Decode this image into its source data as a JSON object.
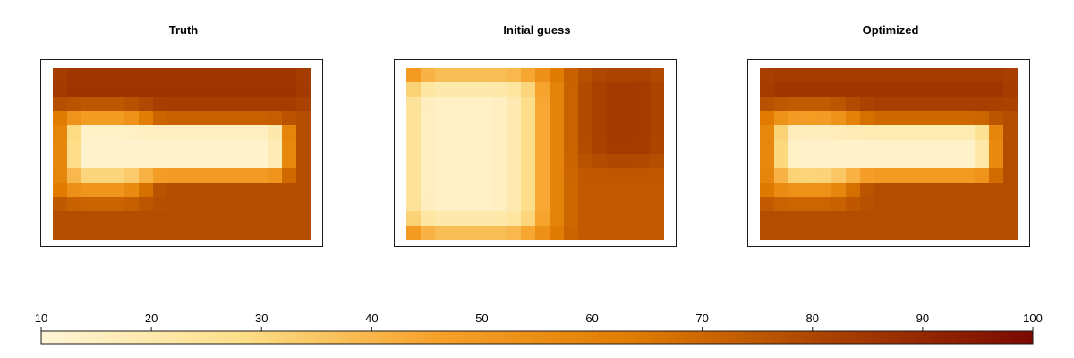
{
  "chart_data": [
    {
      "type": "heatmap",
      "title": "Truth",
      "grid": [
        18,
        12
      ],
      "base": 78,
      "blobs": [
        {
          "x0": 0.08,
          "x1": 0.9,
          "y0": 0.33,
          "y1": 0.62,
          "v": 12,
          "soft": 0.06
        },
        {
          "x0": 0.02,
          "x1": 0.35,
          "y0": 0.25,
          "y1": 0.75,
          "v": 45,
          "soft": 0.1
        },
        {
          "x0": 0.0,
          "x1": 1.0,
          "y0": 0.0,
          "y1": 0.22,
          "v": 86,
          "soft": 0.08
        }
      ]
    },
    {
      "type": "heatmap",
      "title": "Initial guess",
      "grid": [
        18,
        12
      ],
      "base": 74,
      "blobs": [
        {
          "x0": 0.0,
          "x1": 0.45,
          "y0": 0.1,
          "y1": 0.9,
          "v": 14,
          "soft": 0.12
        },
        {
          "x0": 0.0,
          "x1": 0.55,
          "y0": 0.0,
          "y1": 1.0,
          "v": 30,
          "soft": 0.14
        },
        {
          "x0": 0.7,
          "x1": 1.0,
          "y0": 0.0,
          "y1": 0.55,
          "v": 84,
          "soft": 0.12
        }
      ]
    },
    {
      "type": "heatmap",
      "title": "Optimized",
      "grid": [
        18,
        12
      ],
      "base": 78,
      "blobs": [
        {
          "x0": 0.08,
          "x1": 0.9,
          "y0": 0.33,
          "y1": 0.62,
          "v": 13,
          "soft": 0.07
        },
        {
          "x0": 0.02,
          "x1": 0.35,
          "y0": 0.25,
          "y1": 0.75,
          "v": 46,
          "soft": 0.11
        },
        {
          "x0": 0.0,
          "x1": 1.0,
          "y0": 0.0,
          "y1": 0.22,
          "v": 85,
          "soft": 0.09
        }
      ]
    }
  ],
  "colorbar": {
    "min": 10,
    "max": 100,
    "ticks": [
      10,
      20,
      30,
      40,
      50,
      60,
      70,
      80,
      90,
      100
    ],
    "colors": [
      "#fff5d6",
      "#fddf8a",
      "#f6a12a",
      "#e07b00",
      "#a84000",
      "#7a0a00"
    ]
  }
}
